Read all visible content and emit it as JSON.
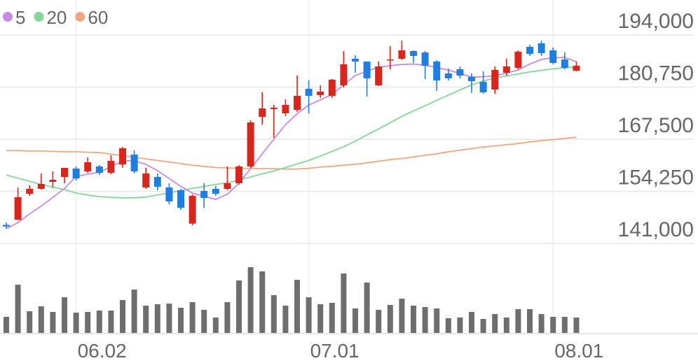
{
  "chart_data": {
    "type": "candlestick",
    "categories": [
      null,
      null,
      null,
      null,
      null,
      null,
      "06.02",
      null,
      null,
      null,
      null,
      null,
      null,
      null,
      null,
      null,
      null,
      null,
      null,
      null,
      null,
      null,
      null,
      null,
      null,
      null,
      "07.01",
      null,
      null,
      null,
      null,
      null,
      null,
      null,
      null,
      null,
      null,
      null,
      null,
      null,
      null,
      null,
      null,
      null,
      null,
      null,
      null,
      "08.01",
      null,
      null
    ],
    "candles": {
      "up_color": "#d9261c",
      "down_color": "#1e7fe0",
      "open": [
        145700,
        147000,
        153630,
        154870,
        156650,
        157900,
        160030,
        159320,
        160560,
        158960,
        161100,
        163590,
        155230,
        157900,
        155230,
        154520,
        146020,
        154340,
        154870,
        154870,
        156300,
        160560,
        173190,
        175150,
        174080,
        174970,
        180310,
        178700,
        178530,
        181190,
        187950,
        187240,
        181190,
        187600,
        187950,
        189910,
        189550,
        187240,
        184220,
        185290,
        183330,
        182080,
        180130,
        184400,
        185640,
        190980,
        191870,
        190090,
        187770,
        184930
      ],
      "high": [
        146300,
        155230,
        155760,
        158790,
        159320,
        160210,
        160560,
        162880,
        160920,
        163410,
        165540,
        164650,
        160210,
        158790,
        156300,
        154870,
        153460,
        156300,
        155590,
        160560,
        160920,
        172300,
        179420,
        176220,
        177640,
        183680,
        182440,
        181190,
        182800,
        189910,
        188840,
        187240,
        187240,
        191150,
        192580,
        190090,
        189910,
        187600,
        185460,
        186000,
        184220,
        184750,
        186000,
        187950,
        190090,
        191510,
        192580,
        190800,
        189550,
        187240
      ],
      "low": [
        144800,
        146900,
        153100,
        154700,
        155230,
        156300,
        157000,
        158960,
        158430,
        158610,
        160210,
        158790,
        154870,
        154520,
        150960,
        149540,
        145620,
        150070,
        153100,
        154520,
        155940,
        160210,
        171230,
        167860,
        173370,
        174440,
        174080,
        178000,
        178000,
        180660,
        184400,
        178350,
        181020,
        185290,
        187600,
        186890,
        182800,
        179770,
        182440,
        182970,
        179240,
        179060,
        179060,
        183680,
        185290,
        188660,
        188660,
        186530,
        185290,
        184750
      ],
      "close": [
        145300,
        152740,
        154870,
        156120,
        157180,
        160210,
        157540,
        161630,
        158960,
        161990,
        165190,
        159320,
        158790,
        155410,
        151670,
        150070,
        153100,
        152560,
        153630,
        156300,
        160560,
        171770,
        175330,
        175500,
        176220,
        178530,
        178530,
        179590,
        182620,
        186530,
        187240,
        182970,
        186000,
        187770,
        190090,
        188660,
        186170,
        182440,
        182970,
        183680,
        182260,
        179420,
        185110,
        186000,
        189730,
        189200,
        189380,
        186890,
        185640,
        186170
      ]
    },
    "series": [
      {
        "name": "5",
        "color": "#c98ae6",
        "values": [
          144700,
          146300,
          148500,
          150500,
          152700,
          155000,
          158000,
          158600,
          159100,
          160500,
          162000,
          162000,
          161100,
          159500,
          157500,
          155500,
          153800,
          153000,
          152200,
          153500,
          156300,
          160000,
          163800,
          167500,
          171200,
          174000,
          176200,
          177500,
          178900,
          181300,
          183700,
          184800,
          185800,
          186200,
          186500,
          186600,
          186300,
          185700,
          185100,
          184200,
          183300,
          183400,
          183600,
          184300,
          185100,
          186600,
          187800,
          188200,
          188300,
          187200
        ]
      },
      {
        "name": "20",
        "color": "#86d69a",
        "values": [
          158400,
          157600,
          156800,
          156000,
          155300,
          154700,
          153800,
          153300,
          152900,
          152700,
          152600,
          152600,
          152800,
          153300,
          153900,
          154400,
          155000,
          155500,
          156000,
          156400,
          157100,
          157900,
          158700,
          159400,
          160300,
          161200,
          162100,
          163200,
          164400,
          165600,
          167000,
          168600,
          170100,
          171700,
          173300,
          174700,
          176000,
          177400,
          178700,
          180000,
          181300,
          182300,
          183000,
          183600,
          184100,
          184600,
          185000,
          185400,
          185700,
          185800
        ]
      },
      {
        "name": "60",
        "color": "#f0a77f",
        "values": [
          164600,
          164600,
          164500,
          164500,
          164400,
          164300,
          164300,
          164200,
          164100,
          163700,
          163300,
          162900,
          162500,
          162100,
          161700,
          161300,
          160900,
          160600,
          160300,
          160200,
          160100,
          160100,
          160000,
          160000,
          159900,
          159900,
          160100,
          160400,
          160600,
          160900,
          161100,
          161500,
          161900,
          162300,
          162600,
          163000,
          163400,
          163800,
          164300,
          164700,
          165100,
          165500,
          165800,
          166100,
          166400,
          166800,
          167100,
          167400,
          167700,
          168000
        ]
      }
    ],
    "volume": {
      "color": "#6e6e6e",
      "values": [
        23,
        69,
        31,
        38,
        30,
        51,
        29,
        30,
        32,
        32,
        47,
        62,
        39,
        41,
        42,
        36,
        44,
        33,
        22,
        44,
        75,
        94,
        88,
        54,
        39,
        76,
        51,
        41,
        43,
        85,
        35,
        72,
        33,
        40,
        49,
        39,
        37,
        35,
        21,
        22,
        30,
        20,
        27,
        22,
        34,
        34,
        27,
        23,
        23,
        22
      ]
    },
    "ylim": [
      141000,
      194000
    ],
    "yticks": [
      {
        "value": 194000,
        "label": "194,000"
      },
      {
        "value": 180750,
        "label": "180,750"
      },
      {
        "value": 167500,
        "label": "167,500"
      },
      {
        "value": 154250,
        "label": "154,250"
      },
      {
        "value": 141000,
        "label": "141,000"
      }
    ],
    "grid": true
  }
}
